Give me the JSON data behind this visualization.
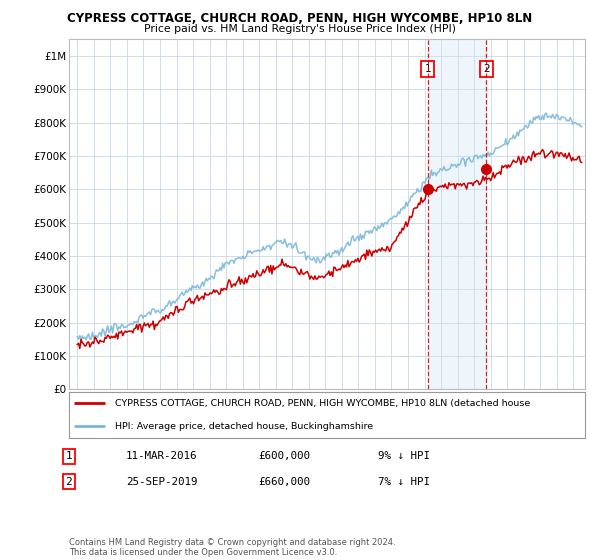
{
  "title": "CYPRESS COTTAGE, CHURCH ROAD, PENN, HIGH WYCOMBE, HP10 8LN",
  "subtitle": "Price paid vs. HM Land Registry's House Price Index (HPI)",
  "hpi_label": "HPI: Average price, detached house, Buckinghamshire",
  "property_label": "CYPRESS COTTAGE, CHURCH ROAD, PENN, HIGH WYCOMBE, HP10 8LN (detached house",
  "sale1_date": "11-MAR-2016",
  "sale1_price": 600000,
  "sale1_hpi": "9% ↓ HPI",
  "sale2_date": "25-SEP-2019",
  "sale2_price": 660000,
  "sale2_hpi": "7% ↓ HPI",
  "footer": "Contains HM Land Registry data © Crown copyright and database right 2024.\nThis data is licensed under the Open Government Licence v3.0.",
  "ylim": [
    0,
    1050000
  ],
  "yticks": [
    0,
    100000,
    200000,
    300000,
    400000,
    500000,
    600000,
    700000,
    800000,
    900000,
    1000000
  ],
  "ytick_labels": [
    "£0",
    "£100K",
    "£200K",
    "£300K",
    "£400K",
    "£500K",
    "£600K",
    "£700K",
    "£800K",
    "£900K",
    "£1M"
  ],
  "hpi_color": "#7ab8d9",
  "property_color": "#cc0000",
  "sale1_x": 2016.19,
  "sale2_x": 2019.73,
  "background_color": "#ffffff",
  "grid_color": "#c8d8e8",
  "span_color": "#d0e8f5"
}
